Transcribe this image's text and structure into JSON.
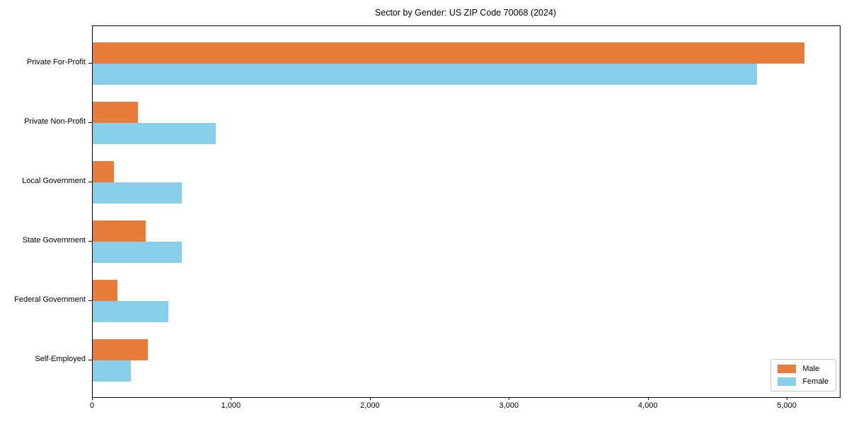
{
  "chart_data": {
    "type": "bar",
    "orientation": "horizontal",
    "title": "Sector by Gender: US ZIP Code 70068 (2024)",
    "categories": [
      "Private For-Profit",
      "Private Non-Profit",
      "Local Government",
      "State Government",
      "Federal Government",
      "Self-Employed"
    ],
    "series": [
      {
        "name": "Male",
        "color": "#E87D3B",
        "values": [
          5120,
          325,
          155,
          380,
          180,
          395
        ]
      },
      {
        "name": "Female",
        "color": "#87CEEB",
        "values": [
          4780,
          885,
          640,
          640,
          545,
          275
        ]
      }
    ],
    "xlabel": "",
    "ylabel": "",
    "x_ticks": [
      0,
      1000,
      2000,
      3000,
      4000,
      5000
    ],
    "x_tick_labels": [
      "0",
      "1,000",
      "2,000",
      "3,000",
      "4,000",
      "5,000"
    ],
    "xlim": [
      0,
      5376
    ],
    "grid": false,
    "legend": {
      "position": "lower right",
      "entries": [
        "Male",
        "Female"
      ]
    },
    "colors": {
      "axis": "#000000",
      "legend_border": "#cccccc",
      "background": "#ffffff"
    }
  }
}
